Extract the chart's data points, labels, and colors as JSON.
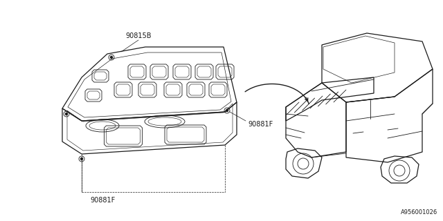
{
  "bg_color": "#ffffff",
  "line_color": "#1a1a1a",
  "label_90815B": "90815B",
  "label_90881F_right": "90881F",
  "label_90881F_bottom": "90881F",
  "diagram_code": "A956001026",
  "fig_width": 6.4,
  "fig_height": 3.2,
  "dpi": 100
}
